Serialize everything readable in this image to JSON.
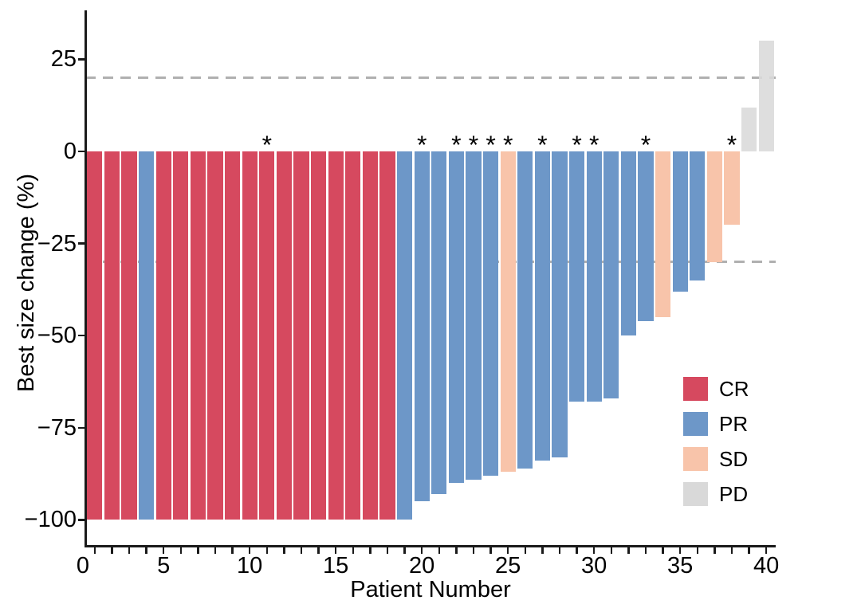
{
  "chart_data": {
    "type": "bar",
    "subtype": "waterfall",
    "title": "",
    "xlabel": "Patient Number",
    "ylabel": "Best size change (%)",
    "x": [
      1,
      2,
      3,
      4,
      5,
      6,
      7,
      8,
      9,
      10,
      11,
      12,
      13,
      14,
      15,
      16,
      17,
      18,
      19,
      20,
      21,
      22,
      23,
      24,
      25,
      26,
      27,
      28,
      29,
      30,
      31,
      32,
      33,
      34,
      35,
      36,
      37,
      38,
      39,
      40
    ],
    "values": [
      -100,
      -100,
      -100,
      -100,
      -100,
      -100,
      -100,
      -100,
      -100,
      -100,
      -100,
      -100,
      -100,
      -100,
      -100,
      -100,
      -100,
      -100,
      -100,
      -95,
      -93,
      -90,
      -89,
      -88,
      -87,
      -86,
      -84,
      -83,
      -68,
      -68,
      -67,
      -50,
      -46,
      -45,
      -38,
      -35,
      -30,
      -20,
      12,
      30
    ],
    "response": [
      "CR",
      "CR",
      "CR",
      "PR",
      "CR",
      "CR",
      "CR",
      "CR",
      "CR",
      "CR",
      "CR",
      "CR",
      "CR",
      "CR",
      "CR",
      "CR",
      "CR",
      "CR",
      "PR",
      "PR",
      "PR",
      "PR",
      "PR",
      "PR",
      "SD",
      "PR",
      "PR",
      "PR",
      "PR",
      "PR",
      "PR",
      "PR",
      "PR",
      "SD",
      "PR",
      "PR",
      "SD",
      "SD",
      "PD",
      "PD"
    ],
    "starred_patients": [
      11,
      20,
      22,
      23,
      24,
      25,
      27,
      29,
      30,
      33,
      38
    ],
    "star_symbol": "*",
    "x_ticks": [
      0,
      5,
      10,
      15,
      20,
      25,
      30,
      35,
      40
    ],
    "x_minor_tick_every": 1,
    "y_ticks": [
      25,
      0,
      -25,
      -50,
      -75,
      -100
    ],
    "xlim": [
      0,
      41
    ],
    "ylim": [
      -100,
      33
    ],
    "grid": false,
    "reference_lines": [
      20,
      -30
    ],
    "reference_line_style": "dashed",
    "reference_line_color": "#b0b0b0",
    "colors": {
      "CR": "#d6495f",
      "PR": "#6d97c8",
      "SD": "#f8c4aa",
      "PD": "#d9d9d9"
    },
    "legend_position": "inside-right-bottom",
    "legend": [
      {
        "label": "CR",
        "color": "#d6495f"
      },
      {
        "label": "PR",
        "color": "#6d97c8"
      },
      {
        "label": "SD",
        "color": "#f8c4aa"
      },
      {
        "label": "PD",
        "color": "#d9d9d9"
      }
    ]
  }
}
